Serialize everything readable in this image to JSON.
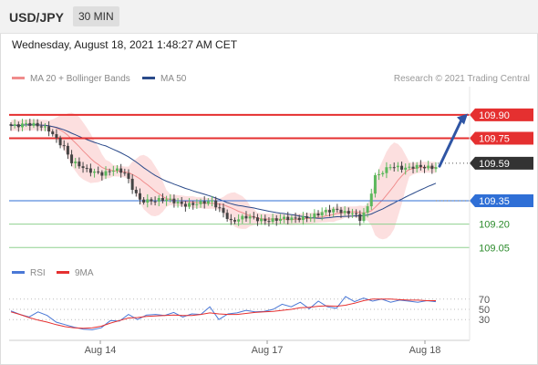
{
  "header": {
    "symbol": "USD/JPY",
    "interval": "30 MIN"
  },
  "timestamp": "Wednesday, August 18, 2021 1:48:27 AM CET",
  "legend": {
    "ma20": "MA 20 + Bollinger Bands",
    "ma50": "MA 50",
    "credit": "Research © 2021 Trading Central",
    "rsi": "RSI",
    "rsi_ma": "9MA"
  },
  "colors": {
    "candle_up": "#5cb85c",
    "candle_down": "#444444",
    "bollinger_fill": "#fbd9d9",
    "ma20": "#f08c8c",
    "ma50": "#2a4a8a",
    "resistance": "#e53030",
    "support": "#2f6fd6",
    "minor_support": "#8fd18f",
    "arrow": "#2f55a4",
    "rsi_line": "#4a78d6",
    "rsi_ma": "#e53030"
  },
  "chart_data": [
    {
      "type": "candlestick",
      "title": "USD/JPY",
      "x_ticks": [
        "Aug 14",
        "Aug 17",
        "Aug 18"
      ],
      "ylim": [
        108.97,
        110.01
      ],
      "price_path": [
        [
          0,
          109.83
        ],
        [
          4,
          109.85
        ],
        [
          10,
          109.8
        ],
        [
          14,
          109.7
        ],
        [
          16,
          109.6
        ],
        [
          18,
          109.57
        ],
        [
          20,
          109.54
        ],
        [
          24,
          109.53
        ],
        [
          27,
          109.55
        ],
        [
          30,
          109.52
        ],
        [
          32,
          109.43
        ],
        [
          34,
          109.36
        ],
        [
          38,
          109.35
        ],
        [
          42,
          109.35
        ],
        [
          46,
          109.33
        ],
        [
          50,
          109.33
        ],
        [
          53,
          109.34
        ],
        [
          56,
          109.28
        ],
        [
          58,
          109.22
        ],
        [
          62,
          109.24
        ],
        [
          66,
          109.23
        ],
        [
          70,
          109.23
        ],
        [
          74,
          109.23
        ],
        [
          78,
          109.25
        ],
        [
          82,
          109.27
        ],
        [
          86,
          109.29
        ],
        [
          88,
          109.28
        ],
        [
          90,
          109.28
        ],
        [
          92,
          109.23
        ],
        [
          94,
          109.3
        ],
        [
          96,
          109.5
        ],
        [
          100,
          109.58
        ],
        [
          104,
          109.55
        ],
        [
          108,
          109.57
        ],
        [
          112,
          109.57
        ]
      ],
      "series": [
        {
          "name": "MA 20",
          "line_style": "with Bollinger Bands"
        },
        {
          "name": "MA 50"
        }
      ],
      "levels": [
        {
          "value": 109.9,
          "label": "109.90",
          "role": "resistance"
        },
        {
          "value": 109.75,
          "label": "109.75",
          "role": "resistance"
        },
        {
          "value": 109.59,
          "label": "109.59",
          "role": "last price"
        },
        {
          "value": 109.35,
          "label": "109.35",
          "role": "support"
        },
        {
          "value": 109.2,
          "label": "109.20",
          "role": "minor support"
        },
        {
          "value": 109.05,
          "label": "109.05",
          "role": "minor support"
        }
      ],
      "annotation": "upward arrow pointing toward 109.90"
    },
    {
      "type": "line",
      "title": "RSI",
      "series": [
        {
          "name": "RSI",
          "values": [
            47,
            40,
            35,
            45,
            38,
            25,
            20,
            15,
            11,
            10,
            14,
            28,
            27,
            40,
            30,
            39,
            40,
            38,
            44,
            35,
            41,
            40,
            55,
            30,
            41,
            43,
            48,
            45,
            46,
            50,
            60,
            55,
            64,
            51,
            66,
            55,
            52,
            75,
            65,
            72,
            66,
            70,
            64,
            68,
            66,
            64,
            67,
            65
          ]
        },
        {
          "name": "9MA",
          "values": [
            45,
            40,
            34,
            29,
            25,
            20,
            16,
            14,
            13,
            14,
            17,
            23,
            28,
            33,
            34,
            36,
            37,
            38,
            39,
            38,
            38,
            40,
            43,
            41,
            40,
            40,
            42,
            44,
            45,
            46,
            48,
            50,
            53,
            54,
            56,
            57,
            56,
            58,
            62,
            67,
            70,
            70,
            70,
            69,
            68,
            68,
            67,
            67
          ]
        }
      ],
      "y_ticks": [
        70,
        50,
        30
      ],
      "ylim": [
        0,
        100
      ]
    }
  ]
}
